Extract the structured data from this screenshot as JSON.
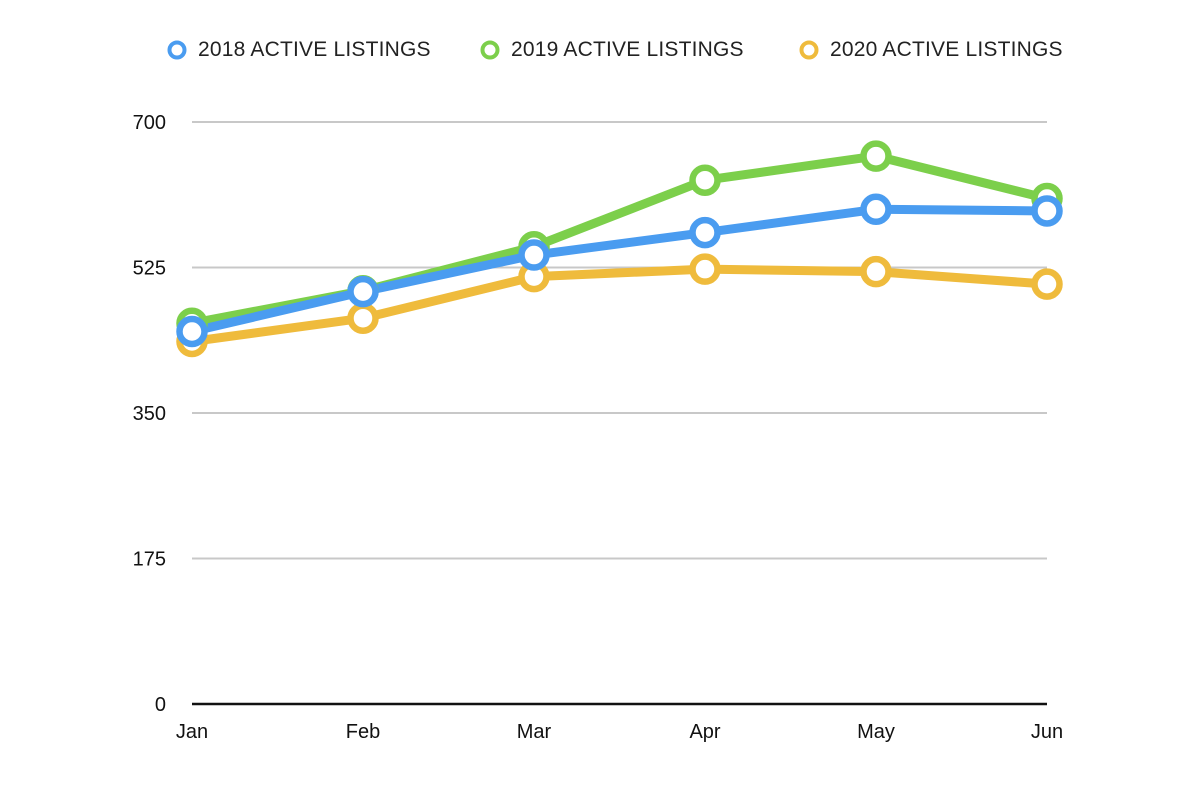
{
  "chart_data": {
    "type": "line",
    "categories": [
      "Jan",
      "Feb",
      "Mar",
      "Apr",
      "May",
      "Jun"
    ],
    "series": [
      {
        "name": "2018 ACTIVE LISTINGS",
        "color": "#4a9cf0",
        "values": [
          448,
          496,
          540,
          567,
          595,
          593
        ]
      },
      {
        "name": "2019 ACTIVE LISTINGS",
        "color": "#7ccf4b",
        "values": [
          458,
          497,
          550,
          630,
          659,
          608
        ]
      },
      {
        "name": "2020 ACTIVE LISTINGS",
        "color": "#efbb3c",
        "values": [
          436,
          464,
          514,
          523,
          520,
          505
        ]
      }
    ],
    "yticks": [
      "0",
      "175",
      "350",
      "525",
      "700"
    ],
    "ylim": [
      0,
      700
    ],
    "grid": true,
    "legend": "top"
  }
}
